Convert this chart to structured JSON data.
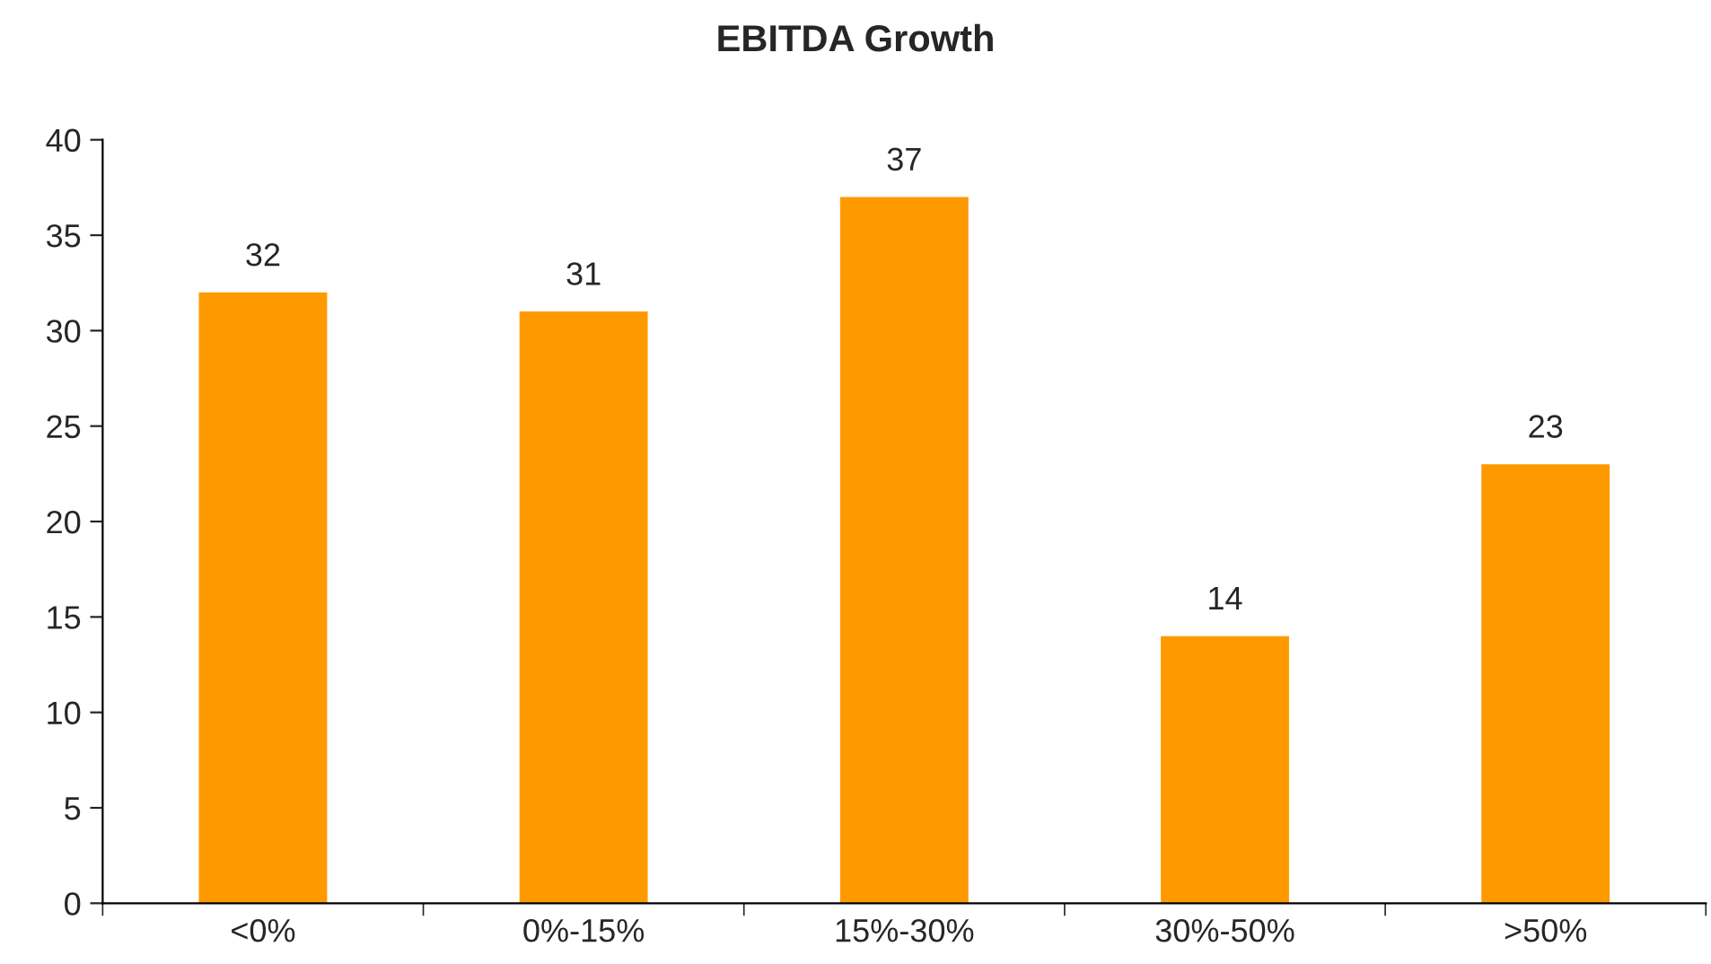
{
  "chart_data": {
    "type": "bar",
    "title": "EBITDA Growth",
    "categories": [
      "<0%",
      "0%-15%",
      "15%-30%",
      "30%-50%",
      ">50%"
    ],
    "values": [
      32,
      31,
      37,
      14,
      23
    ],
    "color": "#ff9900",
    "ylim": [
      0,
      40
    ],
    "yticks": [
      0,
      5,
      10,
      15,
      20,
      25,
      30,
      35,
      40
    ],
    "grid": false,
    "data_labels": true
  }
}
